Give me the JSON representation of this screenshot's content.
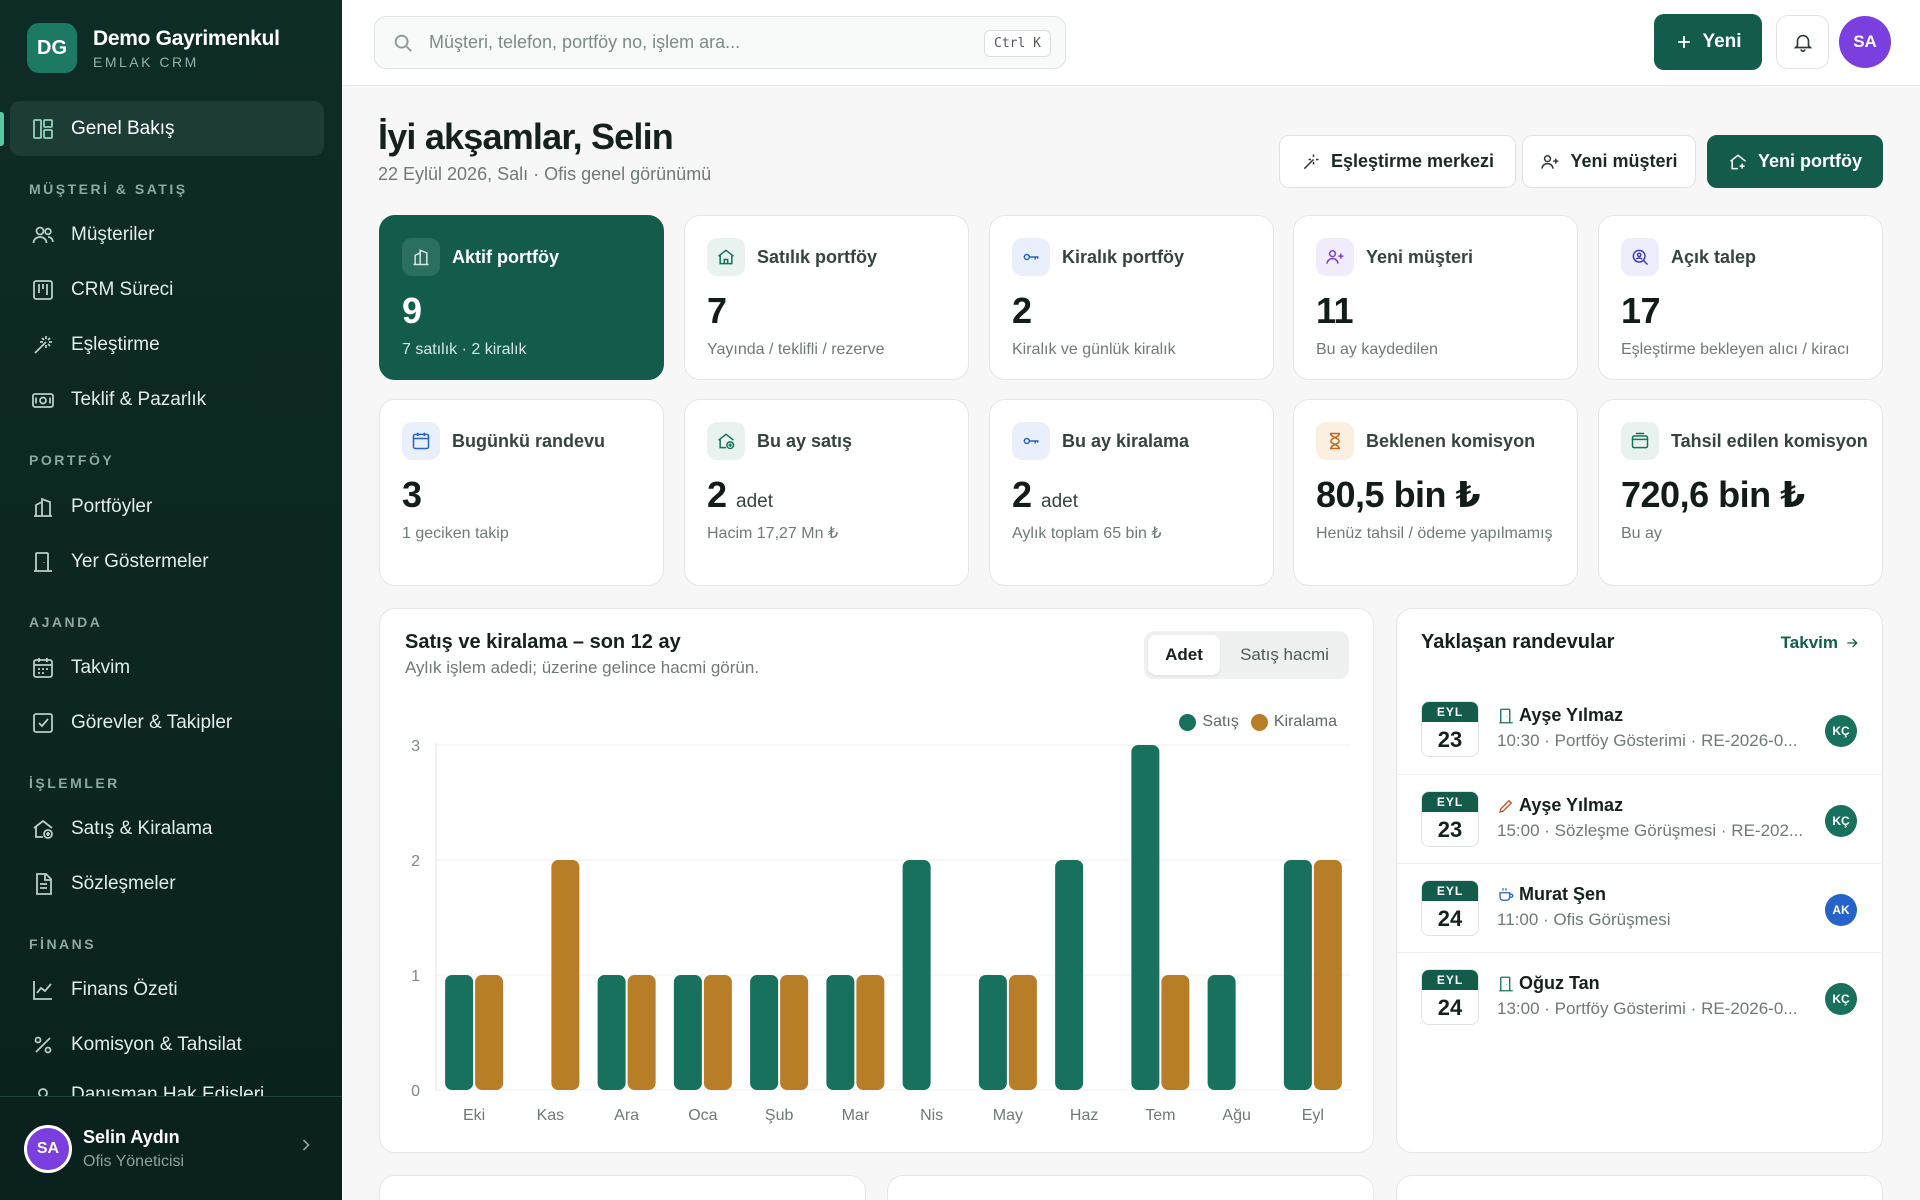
{
  "brand": {
    "initials": "DG",
    "name": "Demo Gayrimenkul",
    "subtitle": "EMLAK CRM"
  },
  "nav": {
    "overview": "Genel Bakış",
    "section_customers": "MÜŞTERİ & SATIŞ",
    "customers": "Müşteriler",
    "crm": "CRM Süreci",
    "matching": "Eşleştirme",
    "offers": "Teklif & Pazarlık",
    "section_portfolio": "PORTFÖY",
    "portfolios": "Portföyler",
    "showings": "Yer Göstermeler",
    "section_agenda": "AJANDA",
    "calendar": "Takvim",
    "tasks": "Görevler & Takipler",
    "section_transactions": "İŞLEMLER",
    "sales": "Satış & Kiralama",
    "contracts": "Sözleşmeler",
    "section_finance": "FİNANS",
    "finance": "Finans Özeti",
    "commission": "Komisyon & Tahsilat",
    "partial": "Danışman Hak Edişleri"
  },
  "user": {
    "initials": "SA",
    "name": "Selin Aydın",
    "role": "Ofis Yöneticisi"
  },
  "topbar": {
    "search_placeholder": "Müşteri, telefon, portföy no, işlem ara...",
    "shortcut": "Ctrl K",
    "new_label": "Yeni",
    "avatar_initials": "SA"
  },
  "header": {
    "greeting": "İyi akşamlar, Selin",
    "subtitle": "22 Eylül 2026, Salı · Ofis genel görünümü",
    "btn_matching": "Eşleştirme merkezi",
    "btn_customer": "Yeni müşteri",
    "btn_portfolio": "Yeni portföy"
  },
  "stats": [
    {
      "label": "Aktif portföy",
      "value": "9",
      "unit": "",
      "sub": "7 satılık · 2 kiralık"
    },
    {
      "label": "Satılık portföy",
      "value": "7",
      "unit": "",
      "sub": "Yayında / teklifli / rezerve"
    },
    {
      "label": "Kiralık portföy",
      "value": "2",
      "unit": "",
      "sub": "Kiralık ve günlük kiralık"
    },
    {
      "label": "Yeni müşteri",
      "value": "11",
      "unit": "",
      "sub": "Bu ay kaydedilen"
    },
    {
      "label": "Açık talep",
      "value": "17",
      "unit": "",
      "sub": "Eşleştirme bekleyen alıcı / kiracı"
    },
    {
      "label": "Bugünkü randevu",
      "value": "3",
      "unit": "",
      "sub": "1 geciken takip"
    },
    {
      "label": "Bu ay satış",
      "value": "2",
      "unit": "adet",
      "sub": "Hacim 17,27 Mn ₺"
    },
    {
      "label": "Bu ay kiralama",
      "value": "2",
      "unit": "adet",
      "sub": "Aylık toplam 65 bin ₺"
    },
    {
      "label": "Beklenen komisyon",
      "value": "80,5 bin ₺",
      "unit": "",
      "sub": "Henüz tahsil / ödeme yapılmamış"
    },
    {
      "label": "Tahsil edilen komisyon",
      "value": "720,6 bin ₺",
      "unit": "",
      "sub": "Bu ay"
    }
  ],
  "chart": {
    "title": "Satış ve kiralama – son 12 ay",
    "subtitle": "Aylık işlem adedi; üzerine gelince hacmi görün.",
    "tab_count": "Adet",
    "tab_volume": "Satış hacmi"
  },
  "chart_data": {
    "type": "bar",
    "categories": [
      "Eki",
      "Kas",
      "Ara",
      "Oca",
      "Şub",
      "Mar",
      "Nis",
      "May",
      "Haz",
      "Tem",
      "Ağu",
      "Eyl"
    ],
    "series": [
      {
        "name": "Satış",
        "color": "#17715d",
        "values": [
          1,
          0,
          1,
          1,
          1,
          1,
          2,
          1,
          2,
          3,
          1,
          2
        ]
      },
      {
        "name": "Kiralama",
        "color": "#b87d27",
        "values": [
          1,
          2,
          1,
          1,
          1,
          1,
          0,
          1,
          0,
          1,
          0,
          2
        ]
      }
    ],
    "ylim": [
      0,
      3
    ],
    "yticks": [
      0,
      1,
      2,
      3
    ],
    "legend": "top-right",
    "grid": true
  },
  "appointments": {
    "title": "Yaklaşan randevular",
    "link": "Takvim",
    "items": [
      {
        "month": "EYL",
        "day": "23",
        "name": "Ayşe Yılmaz",
        "meta": "10:30 · Portföy Gösterimi · RE-2026-0...",
        "badge": "KÇ",
        "badge_color": "#17715d",
        "icon": "door-icon",
        "icon_color": "#17715d"
      },
      {
        "month": "EYL",
        "day": "23",
        "name": "Ayşe Yılmaz",
        "meta": "15:00 · Sözleşme Görüşmesi · RE-202...",
        "badge": "KÇ",
        "badge_color": "#17715d",
        "icon": "pen-icon",
        "icon_color": "#c0562b"
      },
      {
        "month": "EYL",
        "day": "24",
        "name": "Murat Şen",
        "meta": "11:00 · Ofis Görüşmesi",
        "badge": "AK",
        "badge_color": "#2563c9",
        "icon": "cup-icon",
        "icon_color": "#2563c9"
      },
      {
        "month": "EYL",
        "day": "24",
        "name": "Oğuz Tan",
        "meta": "13:00 · Portföy Gösterimi · RE-2026-0...",
        "badge": "KÇ",
        "badge_color": "#17715d",
        "icon": "door-icon",
        "icon_color": "#17715d"
      }
    ]
  }
}
